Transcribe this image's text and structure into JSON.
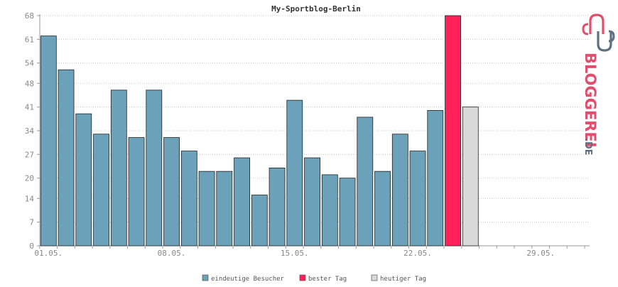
{
  "chart_data": {
    "type": "bar",
    "title": "My-Sportblog-Berlin",
    "xlabel": "",
    "ylabel": "",
    "ylim": [
      0,
      68
    ],
    "y_ticks": [
      0,
      7,
      14,
      20,
      27,
      34,
      41,
      48,
      54,
      61,
      68
    ],
    "x_tick_labels": [
      {
        "day": 1,
        "label": "01.05."
      },
      {
        "day": 8,
        "label": "08.05."
      },
      {
        "day": 15,
        "label": "15.05."
      },
      {
        "day": 22,
        "label": "22.05."
      },
      {
        "day": 29,
        "label": "29.05."
      }
    ],
    "days_in_month": 31,
    "grid": true,
    "legend_position": "bottom",
    "series": [
      {
        "name": "eindeutige Besucher",
        "color": "#6ba2ba",
        "points": [
          {
            "day": 1,
            "value": 62
          },
          {
            "day": 2,
            "value": 52
          },
          {
            "day": 3,
            "value": 39
          },
          {
            "day": 4,
            "value": 33
          },
          {
            "day": 5,
            "value": 46
          },
          {
            "day": 6,
            "value": 32
          },
          {
            "day": 7,
            "value": 46
          },
          {
            "day": 8,
            "value": 32
          },
          {
            "day": 9,
            "value": 28
          },
          {
            "day": 10,
            "value": 22
          },
          {
            "day": 11,
            "value": 22
          },
          {
            "day": 12,
            "value": 26
          },
          {
            "day": 13,
            "value": 15
          },
          {
            "day": 14,
            "value": 23
          },
          {
            "day": 15,
            "value": 43
          },
          {
            "day": 16,
            "value": 26
          },
          {
            "day": 17,
            "value": 21
          },
          {
            "day": 18,
            "value": 20
          },
          {
            "day": 19,
            "value": 38
          },
          {
            "day": 20,
            "value": 22
          },
          {
            "day": 21,
            "value": 33
          },
          {
            "day": 22,
            "value": 28
          },
          {
            "day": 23,
            "value": 40
          }
        ]
      },
      {
        "name": "bester Tag",
        "color": "#ff2157",
        "points": [
          {
            "day": 24,
            "value": 68
          }
        ]
      },
      {
        "name": "heutiger Tag",
        "color": "#d9d9d9",
        "points": [
          {
            "day": 25,
            "value": 41
          }
        ]
      }
    ]
  },
  "logo": {
    "text": "BLOGGEREI",
    "suffix": ".DE",
    "colors": {
      "pink": "#e0506e",
      "slate": "#5d7184"
    }
  }
}
